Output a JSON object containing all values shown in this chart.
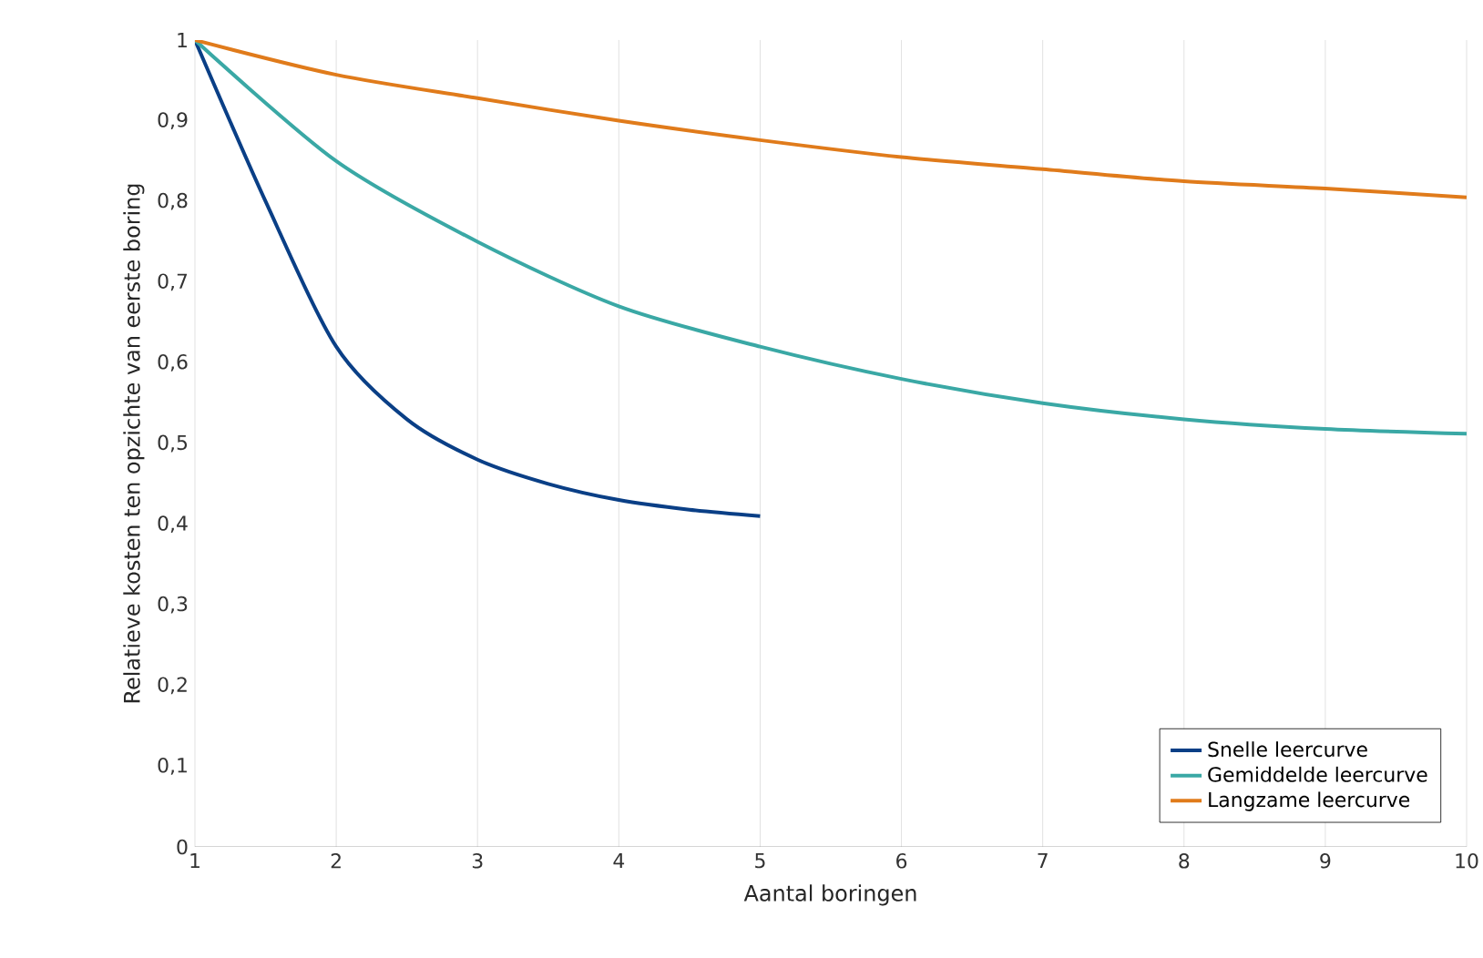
{
  "chart_data": {
    "type": "line",
    "xlabel": "Aantal boringen",
    "ylabel": "Relatieve kosten ten opzichte van eerste boring",
    "xlim": [
      1,
      10
    ],
    "xticks": [
      1,
      2,
      3,
      4,
      5,
      6,
      7,
      8,
      9,
      10
    ],
    "ylim": [
      0,
      1
    ],
    "yticks": [
      0,
      {
        "value": 0.1,
        "label": "0,1"
      },
      {
        "value": 0.2,
        "label": "0,2"
      },
      {
        "value": 0.3,
        "label": "0,3"
      },
      {
        "value": 0.4,
        "label": "0,4"
      },
      {
        "value": 0.5,
        "label": "0,5"
      },
      {
        "value": 0.6,
        "label": "0,6"
      },
      {
        "value": 0.7,
        "label": "0,7"
      },
      {
        "value": 0.8,
        "label": "0,8"
      },
      {
        "value": 0.9,
        "label": "0,9"
      },
      1
    ],
    "grid": "x",
    "legend": "bottom right",
    "marker": "none",
    "line_style": "solid",
    "series": [
      {
        "name": "Snelle leercurve",
        "color": "#0a3f86",
        "x": [
          1,
          1.5,
          2,
          2.5,
          3,
          3.5,
          4,
          4.5,
          5
        ],
        "values": [
          1,
          0.8,
          0.62,
          0.53,
          0.48,
          0.45,
          0.43,
          0.418,
          0.41
        ]
      },
      {
        "name": "Gemiddelde leercurve",
        "color": "#3aa8a5",
        "x": [
          1,
          2,
          3,
          4,
          5,
          6,
          7,
          8,
          9,
          10
        ],
        "values": [
          1,
          0.85,
          0.75,
          0.67,
          0.62,
          0.58,
          0.55,
          0.53,
          0.518,
          0.512
        ]
      },
      {
        "name": "Langzame leercurve",
        "color": "#e07b1b",
        "x": [
          1,
          2,
          3,
          4,
          5,
          6,
          7,
          8,
          9,
          10
        ],
        "values": [
          1,
          0.957,
          0.928,
          0.9,
          0.876,
          0.855,
          0.84,
          0.825,
          0.816,
          0.805
        ]
      }
    ]
  }
}
